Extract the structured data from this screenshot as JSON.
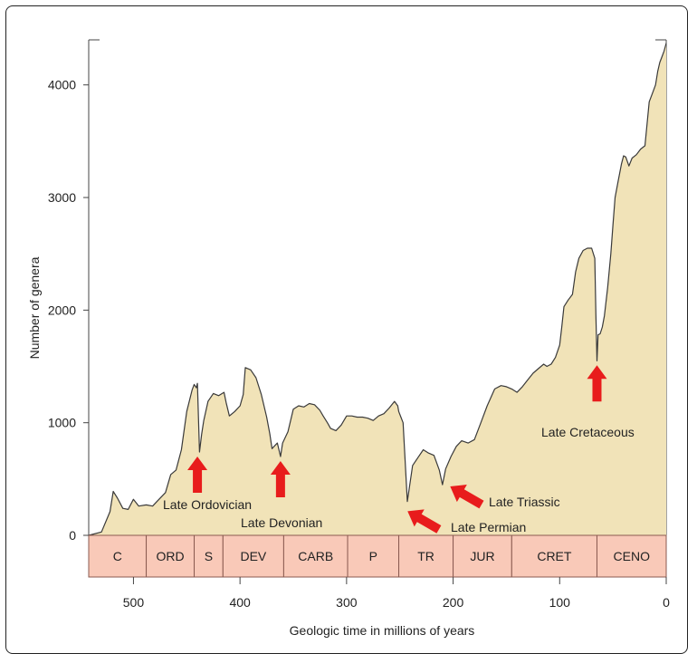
{
  "chart_data": {
    "type": "area",
    "title": "",
    "xlabel": "Geologic time in millions of years",
    "ylabel": "Number of genera",
    "xlim": [
      542,
      0
    ],
    "ylim": [
      0,
      4400
    ],
    "x_ticks": [
      500,
      400,
      300,
      200,
      100,
      0
    ],
    "y_ticks": [
      0,
      1000,
      2000,
      3000,
      4000
    ],
    "grid": false,
    "colors": {
      "fill": "#f1e3b8",
      "line": "#3a3a3a",
      "arrow": "#e81c1c",
      "period_fill": "#f9c9b8",
      "period_border": "#8a5a50"
    },
    "series": [
      {
        "x": [
          542,
          530,
          522,
          519,
          515,
          510,
          505,
          500,
          495,
          488,
          482,
          478,
          470,
          465,
          460,
          455,
          450,
          445,
          443,
          441,
          440,
          438,
          436,
          434,
          430,
          425,
          420,
          415,
          413,
          410,
          405,
          400,
          397,
          395,
          390,
          385,
          380,
          375,
          372,
          370,
          368,
          365,
          362,
          360,
          355,
          350,
          345,
          340,
          335,
          330,
          325,
          322,
          318,
          315,
          310,
          305,
          300,
          295,
          290,
          285,
          280,
          275,
          270,
          265,
          260,
          255,
          252,
          251,
          249,
          247,
          243,
          238,
          233,
          228,
          223,
          218,
          213,
          210,
          207,
          202,
          197,
          192,
          186,
          180,
          174,
          168,
          161,
          155,
          150,
          145,
          140,
          135,
          130,
          125,
          120,
          115,
          112,
          108,
          104,
          100,
          98,
          96,
          92,
          88,
          85,
          82,
          78,
          74,
          70,
          67,
          66,
          65,
          64,
          62,
          60,
          58,
          55,
          52,
          50,
          48,
          45,
          42,
          40,
          38,
          35,
          32,
          28,
          24,
          20,
          16,
          12,
          10,
          8,
          6,
          4,
          2,
          0
        ],
        "values": [
          0,
          30,
          210,
          390,
          330,
          240,
          230,
          320,
          260,
          270,
          260,
          300,
          380,
          540,
          580,
          760,
          1100,
          1290,
          1340,
          1310,
          1350,
          740,
          900,
          1020,
          1190,
          1260,
          1240,
          1270,
          1180,
          1060,
          1100,
          1150,
          1250,
          1490,
          1470,
          1400,
          1250,
          1050,
          900,
          770,
          790,
          820,
          700,
          820,
          920,
          1120,
          1150,
          1140,
          1170,
          1160,
          1110,
          1060,
          1000,
          950,
          930,
          980,
          1060,
          1060,
          1050,
          1050,
          1040,
          1020,
          1060,
          1080,
          1130,
          1190,
          1150,
          1100,
          1050,
          1000,
          300,
          620,
          690,
          760,
          730,
          710,
          580,
          450,
          590,
          700,
          790,
          840,
          820,
          850,
          1000,
          1150,
          1300,
          1330,
          1320,
          1300,
          1270,
          1320,
          1380,
          1440,
          1480,
          1520,
          1500,
          1520,
          1580,
          1690,
          1850,
          2030,
          2090,
          2140,
          2340,
          2460,
          2530,
          2550,
          2550,
          2460,
          1960,
          1550,
          1780,
          1790,
          1850,
          1950,
          2200,
          2500,
          2750,
          3000,
          3150,
          3300,
          3370,
          3360,
          3280,
          3350,
          3380,
          3430,
          3460,
          3850,
          3950,
          4000,
          4120,
          4200,
          4250,
          4300,
          4370
        ]
      }
    ],
    "periods": [
      {
        "label": "C",
        "start": 542,
        "end": 488
      },
      {
        "label": "ORD",
        "start": 488,
        "end": 443
      },
      {
        "label": "S",
        "start": 443,
        "end": 416
      },
      {
        "label": "DEV",
        "start": 416,
        "end": 359
      },
      {
        "label": "CARB",
        "start": 359,
        "end": 299
      },
      {
        "label": "P",
        "start": 299,
        "end": 251
      },
      {
        "label": "TR",
        "start": 251,
        "end": 200
      },
      {
        "label": "JUR",
        "start": 200,
        "end": 145
      },
      {
        "label": "CRET",
        "start": 145,
        "end": 65
      },
      {
        "label": "CENO",
        "start": 65,
        "end": 0
      }
    ],
    "annotations": [
      {
        "label": "Late Ordovician",
        "x": 440,
        "y": 740,
        "arrow": "up"
      },
      {
        "label": "Late Devonian",
        "x": 362,
        "y": 700,
        "arrow": "up"
      },
      {
        "label": "Late Permian",
        "x": 247,
        "y": 230,
        "arrow": "up-left"
      },
      {
        "label": "Late Triassic",
        "x": 207,
        "y": 450,
        "arrow": "up-left"
      },
      {
        "label": "Late Cretaceous",
        "x": 65,
        "y": 1550,
        "arrow": "up"
      }
    ]
  }
}
